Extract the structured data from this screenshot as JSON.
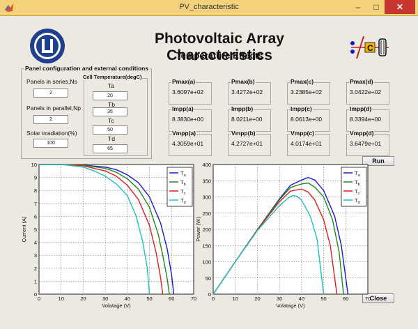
{
  "window": {
    "title": "PV_characteristic",
    "min_glyph": "–",
    "max_glyph": "□",
    "close_glyph": "✕"
  },
  "header": {
    "main_title": "Photovoltaic Array Characteristics",
    "sub_title": "Temperature Effects"
  },
  "panel": {
    "legend": "Panel configuration and external conditions",
    "ns_label": "Panels in series,Ns",
    "ns_value": "2",
    "np_label": "Panels in parallel,Np",
    "np_value": "2",
    "irr_label": "Solar irradiation(%)",
    "irr_value": "100"
  },
  "cell_temp": {
    "legend": "Cell Temperature(degC)",
    "ta_label": "Ta",
    "ta_value": "20",
    "tb_label": "Tb",
    "tb_value": "35",
    "tc_label": "Tc",
    "tc_value": "50",
    "td_label": "Td",
    "td_value": "65"
  },
  "results": [
    {
      "label": "Pmax(a)",
      "value": "3.6097e+02"
    },
    {
      "label": "Pmax(b)",
      "value": "3.4272e+02"
    },
    {
      "label": "Pmax(c)",
      "value": "3.2385e+02"
    },
    {
      "label": "Pmax(d)",
      "value": "3.0422e+02"
    },
    {
      "label": "Impp(a)",
      "value": "8.3830e+00"
    },
    {
      "label": "Impp(b)",
      "value": "8.0211e+00"
    },
    {
      "label": "Impp(c)",
      "value": "8.0613e+00"
    },
    {
      "label": "Impp(d)",
      "value": "8.3394e+00"
    },
    {
      "label": "Vmpp(a)",
      "value": "4.3059e+01"
    },
    {
      "label": "Vmpp(b)",
      "value": "4.2727e+01"
    },
    {
      "label": "Vmpp(c)",
      "value": "4.0174e+01"
    },
    {
      "label": "Vmpp(d)",
      "value": "3.6479e+01"
    }
  ],
  "buttons": {
    "run": "Run",
    "close": "Close"
  },
  "colors": {
    "a": "#1a1acc",
    "b": "#1e8a1e",
    "c": "#e01c1c",
    "d": "#20c0c0",
    "titlebar": "#f3d27a"
  },
  "chart_data": [
    {
      "type": "line",
      "xlabel": "Volatage (V)",
      "ylabel": "Current (A)",
      "xlim": [
        0,
        70
      ],
      "ylim": [
        0,
        10
      ],
      "xticks": [
        0,
        10,
        20,
        30,
        40,
        50,
        60,
        70
      ],
      "yticks": [
        0,
        1,
        2,
        3,
        4,
        5,
        6,
        7,
        8,
        9,
        10
      ],
      "grid": true,
      "legend_position": "top-right",
      "series": [
        {
          "name": "Ta",
          "sub": "a",
          "x": [
            0,
            10,
            20,
            30,
            35,
            40,
            45,
            50,
            55,
            58,
            60,
            61
          ],
          "y": [
            10,
            10,
            9.95,
            9.8,
            9.6,
            9.2,
            8.6,
            7.5,
            5.5,
            3.5,
            1.5,
            0
          ]
        },
        {
          "name": "Tb",
          "sub": "b",
          "x": [
            0,
            10,
            20,
            30,
            35,
            40,
            45,
            50,
            54,
            56,
            58,
            59
          ],
          "y": [
            10,
            10,
            9.95,
            9.7,
            9.4,
            8.9,
            8.1,
            6.7,
            4.6,
            3.0,
            1.2,
            0
          ]
        },
        {
          "name": "Tc",
          "sub": "c",
          "x": [
            0,
            10,
            20,
            30,
            35,
            40,
            45,
            50,
            53,
            55,
            56
          ],
          "y": [
            10,
            10,
            9.9,
            9.5,
            9.1,
            8.4,
            7.3,
            5.3,
            3.2,
            1.3,
            0
          ]
        },
        {
          "name": "Td",
          "sub": "d",
          "x": [
            0,
            10,
            20,
            25,
            30,
            35,
            40,
            44,
            47,
            49,
            50
          ],
          "y": [
            10,
            10,
            9.8,
            9.5,
            9.1,
            8.5,
            7.6,
            6.0,
            4.0,
            2.0,
            0
          ]
        }
      ]
    },
    {
      "type": "line",
      "xlabel": "Volatage (V)",
      "ylabel": "Power (W)",
      "xlim": [
        0,
        70
      ],
      "ylim": [
        0,
        400
      ],
      "xticks": [
        0,
        10,
        20,
        30,
        40,
        50,
        60,
        70
      ],
      "yticks": [
        0,
        50,
        100,
        150,
        200,
        250,
        300,
        350,
        400
      ],
      "grid": true,
      "legend_position": "top-right",
      "series": [
        {
          "name": "Ta",
          "sub": "a",
          "x": [
            0,
            10,
            20,
            30,
            35,
            40,
            43,
            46,
            50,
            55,
            58,
            61
          ],
          "y": [
            0,
            100,
            199,
            294,
            336,
            352,
            360,
            352,
            320,
            240,
            150,
            0
          ]
        },
        {
          "name": "Tb",
          "sub": "b",
          "x": [
            0,
            10,
            20,
            30,
            35,
            40,
            43,
            46,
            50,
            54,
            57,
            59
          ],
          "y": [
            0,
            100,
            199,
            291,
            329,
            340,
            343,
            330,
            300,
            230,
            130,
            0
          ]
        },
        {
          "name": "Tc",
          "sub": "c",
          "x": [
            0,
            10,
            20,
            30,
            35,
            38,
            40,
            43,
            46,
            50,
            53,
            56
          ],
          "y": [
            0,
            100,
            198,
            285,
            318,
            322,
            324,
            315,
            290,
            230,
            150,
            0
          ]
        },
        {
          "name": "Td",
          "sub": "d",
          "x": [
            0,
            10,
            20,
            30,
            34,
            36,
            38,
            40,
            44,
            47,
            50
          ],
          "y": [
            0,
            100,
            196,
            273,
            297,
            304,
            302,
            290,
            240,
            170,
            0
          ]
        }
      ]
    }
  ]
}
